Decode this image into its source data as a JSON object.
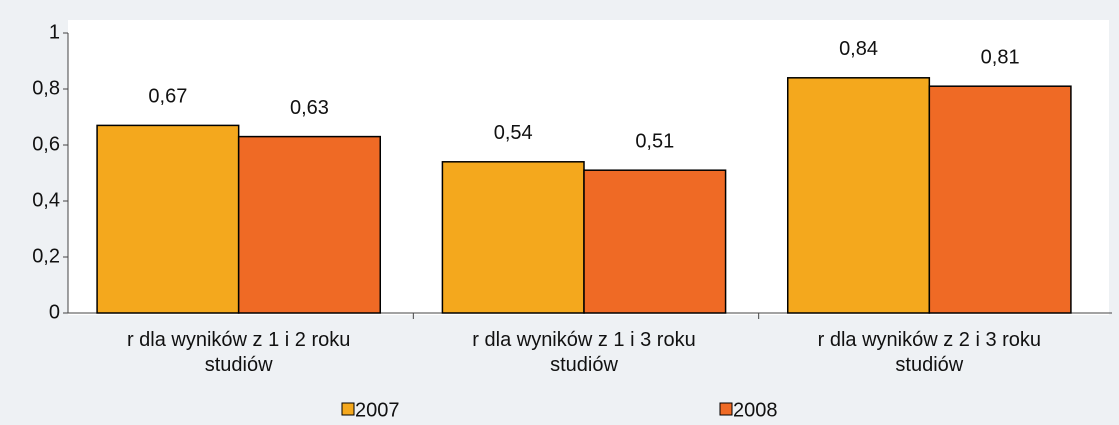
{
  "chart_data": {
    "type": "bar",
    "categories": [
      "r dla wyników z 1 i 2 roku studiów",
      "r dla wyników z 1 i 3 roku studiów",
      "r dla wyników z 2 i 3 roku studiów"
    ],
    "series": [
      {
        "name": "2007",
        "color": "#f4a81d",
        "values": [
          0.67,
          0.54,
          0.84
        ],
        "value_labels": [
          "0,67",
          "0,54",
          "0,84"
        ]
      },
      {
        "name": "2008",
        "color": "#ef6a25",
        "values": [
          0.63,
          0.51,
          0.81
        ],
        "value_labels": [
          "0,63",
          "0,51",
          "0,81"
        ]
      }
    ],
    "ylim": [
      0,
      1
    ],
    "yticks": [
      0,
      {
        "value": 0.2,
        "label": "0,2"
      },
      {
        "value": 0.4,
        "label": "0,4"
      },
      {
        "value": 0.6,
        "label": "0,6"
      },
      {
        "value": 0.8,
        "label": "0,8"
      },
      1
    ],
    "legend": "bottom"
  }
}
